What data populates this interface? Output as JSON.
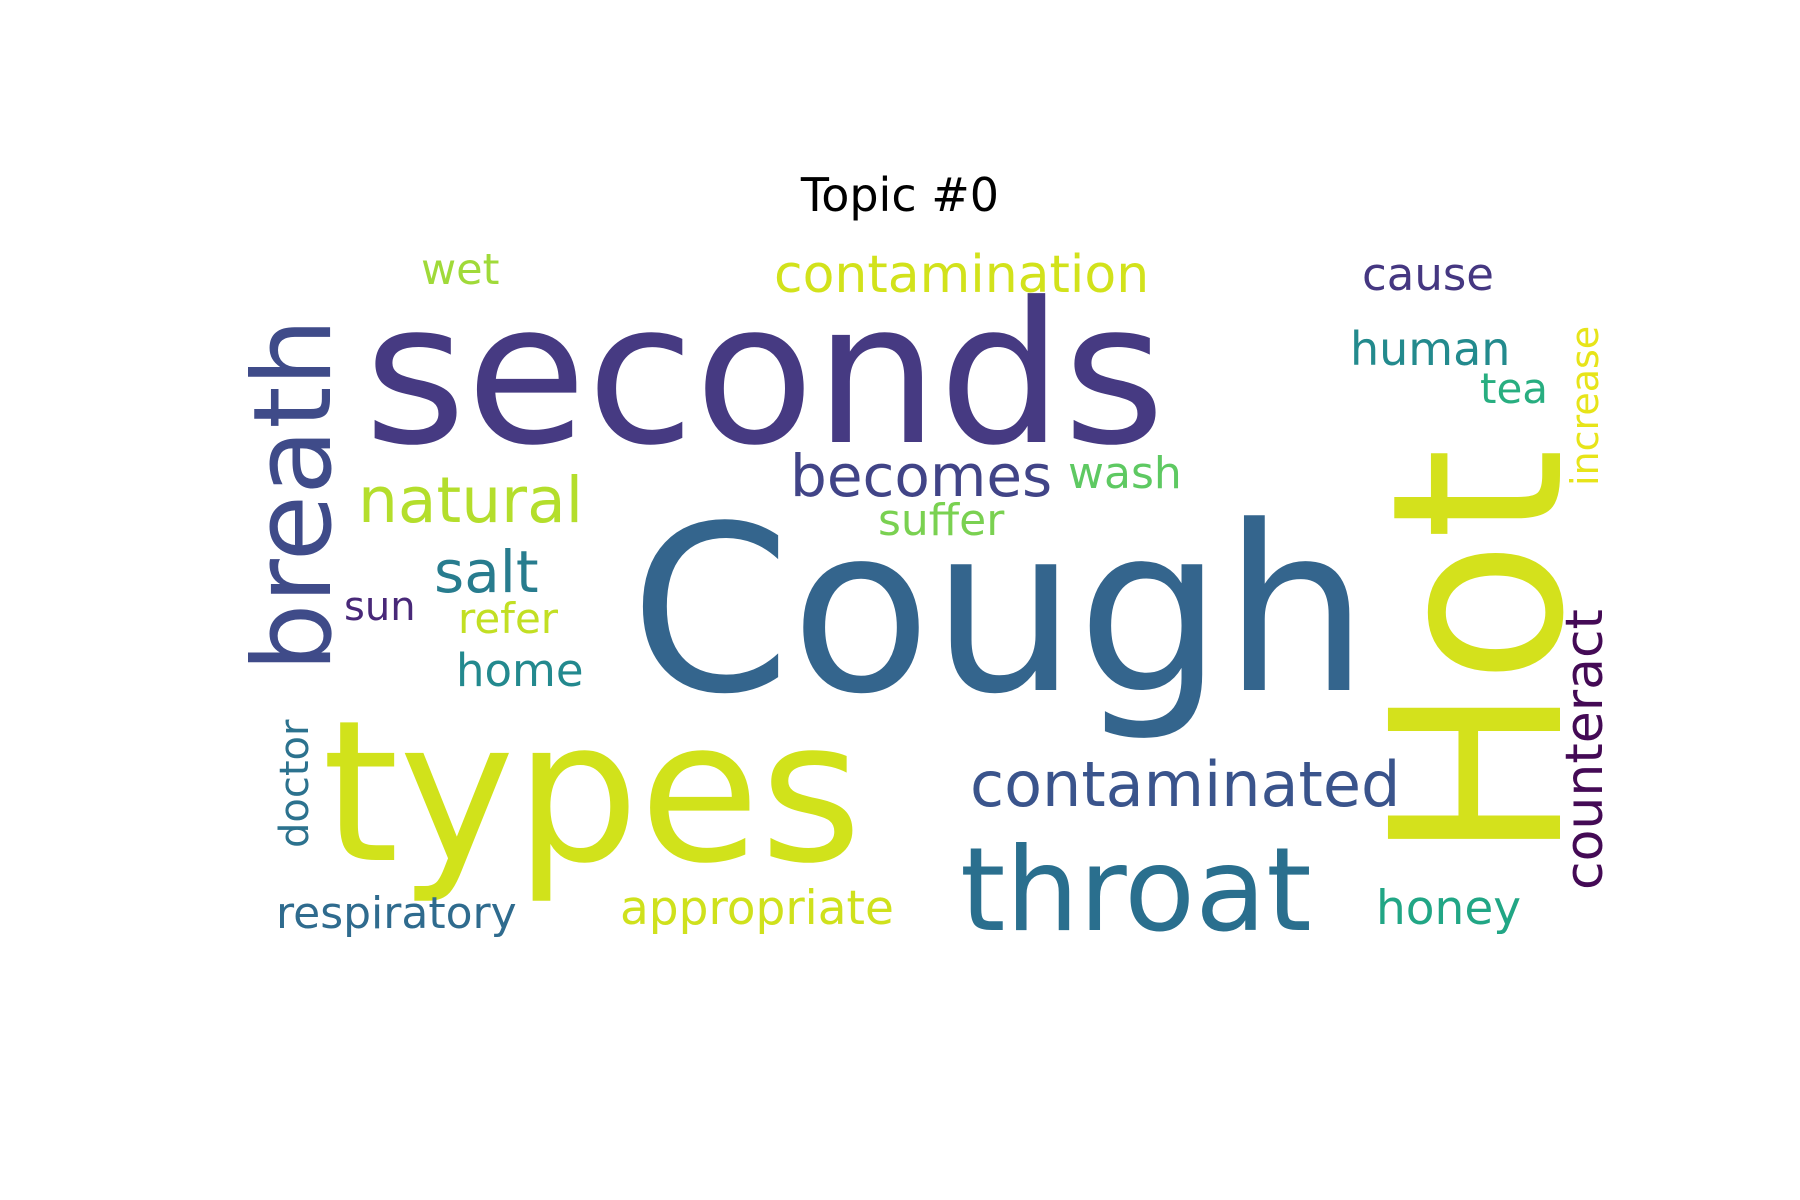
{
  "title": "Topic #0",
  "words": [
    {
      "text": "seconds",
      "color": "#463a82",
      "orientation": "horizontal"
    },
    {
      "text": "Cough",
      "color": "#34658d",
      "orientation": "horizontal"
    },
    {
      "text": "types",
      "color": "#d1e21b",
      "orientation": "horizontal"
    },
    {
      "text": "Hot",
      "color": "#d4e11c",
      "orientation": "vertical"
    },
    {
      "text": "breath",
      "color": "#3f4b89",
      "orientation": "vertical"
    },
    {
      "text": "throat",
      "color": "#2a6f8e",
      "orientation": "horizontal"
    },
    {
      "text": "contaminated",
      "color": "#3a548c",
      "orientation": "horizontal"
    },
    {
      "text": "counteract",
      "color": "#440a55",
      "orientation": "vertical"
    },
    {
      "text": "contamination",
      "color": "#d2e21b",
      "orientation": "horizontal"
    },
    {
      "text": "natural",
      "color": "#b4de2c",
      "orientation": "horizontal"
    },
    {
      "text": "becomes",
      "color": "#414487",
      "orientation": "horizontal"
    },
    {
      "text": "salt",
      "color": "#287c8e",
      "orientation": "horizontal"
    },
    {
      "text": "home",
      "color": "#23898e",
      "orientation": "horizontal"
    },
    {
      "text": "appropriate",
      "color": "#cfe11c",
      "orientation": "horizontal"
    },
    {
      "text": "respiratory",
      "color": "#2f6b8e",
      "orientation": "horizontal"
    },
    {
      "text": "honey",
      "color": "#21a685",
      "orientation": "horizontal"
    },
    {
      "text": "cause",
      "color": "#453781",
      "orientation": "horizontal"
    },
    {
      "text": "human",
      "color": "#238a8d",
      "orientation": "horizontal"
    },
    {
      "text": "increase",
      "color": "#e7e419",
      "orientation": "vertical"
    },
    {
      "text": "tea",
      "color": "#28ae80",
      "orientation": "horizontal"
    },
    {
      "text": "wash",
      "color": "#5ec962",
      "orientation": "horizontal"
    },
    {
      "text": "suffer",
      "color": "#7ad151",
      "orientation": "horizontal"
    },
    {
      "text": "wet",
      "color": "#a0da39",
      "orientation": "horizontal"
    },
    {
      "text": "sun",
      "color": "#482878",
      "orientation": "horizontal"
    },
    {
      "text": "refer",
      "color": "#c2df23",
      "orientation": "horizontal"
    },
    {
      "text": "doctor",
      "color": "#2c728e",
      "orientation": "vertical"
    }
  ]
}
